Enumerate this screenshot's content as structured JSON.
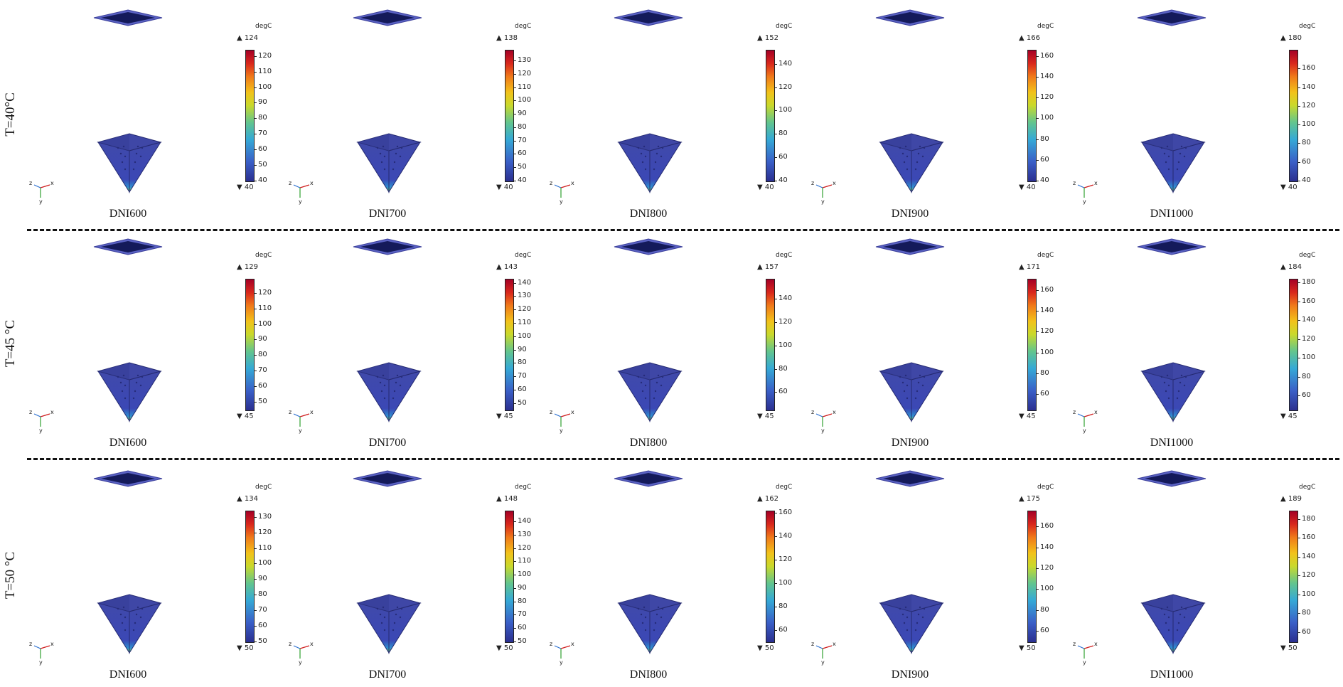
{
  "unit": "degC",
  "rows": [
    {
      "label": "T=40°C",
      "panels": [
        {
          "title": "DNI600",
          "max": "124",
          "min": "40",
          "ticks": [
            "120",
            "110",
            "100",
            "90",
            "80",
            "70",
            "60",
            "50",
            "40"
          ]
        },
        {
          "title": "DNI700",
          "max": "138",
          "min": "40",
          "ticks": [
            "130",
            "120",
            "110",
            "100",
            "90",
            "80",
            "70",
            "60",
            "50",
            "40"
          ]
        },
        {
          "title": "DNI800",
          "max": "152",
          "min": "40",
          "ticks": [
            "140",
            "120",
            "100",
            "80",
            "60",
            "40"
          ]
        },
        {
          "title": "DNI900",
          "max": "166",
          "min": "40",
          "ticks": [
            "160",
            "140",
            "120",
            "100",
            "80",
            "60",
            "40"
          ]
        },
        {
          "title": "DNI1000",
          "max": "180",
          "min": "40",
          "ticks": [
            "160",
            "140",
            "120",
            "100",
            "80",
            "60",
            "40"
          ]
        }
      ]
    },
    {
      "label": "T=45 °C",
      "panels": [
        {
          "title": "DNI600",
          "max": "129",
          "min": "45",
          "ticks": [
            "120",
            "110",
            "100",
            "90",
            "80",
            "70",
            "60",
            "50"
          ]
        },
        {
          "title": "DNI700",
          "max": "143",
          "min": "45",
          "ticks": [
            "140",
            "130",
            "120",
            "110",
            "100",
            "90",
            "80",
            "70",
            "60",
            "50"
          ]
        },
        {
          "title": "DNI800",
          "max": "157",
          "min": "45",
          "ticks": [
            "140",
            "120",
            "100",
            "80",
            "60"
          ]
        },
        {
          "title": "DNI900",
          "max": "171",
          "min": "45",
          "ticks": [
            "160",
            "140",
            "120",
            "100",
            "80",
            "60"
          ]
        },
        {
          "title": "DNI1000",
          "max": "184",
          "min": "45",
          "ticks": [
            "180",
            "160",
            "140",
            "120",
            "100",
            "80",
            "60"
          ]
        }
      ]
    },
    {
      "label": "T=50 °C",
      "panels": [
        {
          "title": "DNI600",
          "max": "134",
          "min": "50",
          "ticks": [
            "130",
            "120",
            "110",
            "100",
            "90",
            "80",
            "70",
            "60",
            "50"
          ]
        },
        {
          "title": "DNI700",
          "max": "148",
          "min": "50",
          "ticks": [
            "140",
            "130",
            "120",
            "110",
            "100",
            "90",
            "80",
            "70",
            "60",
            "50"
          ]
        },
        {
          "title": "DNI800",
          "max": "162",
          "min": "50",
          "ticks": [
            "160",
            "140",
            "120",
            "100",
            "80",
            "60"
          ]
        },
        {
          "title": "DNI900",
          "max": "175",
          "min": "50",
          "ticks": [
            "160",
            "140",
            "120",
            "100",
            "80",
            "60"
          ]
        },
        {
          "title": "DNI1000",
          "max": "189",
          "min": "50",
          "ticks": [
            "180",
            "160",
            "140",
            "120",
            "100",
            "80",
            "60"
          ]
        }
      ]
    }
  ],
  "axes_labels": {
    "z": "z",
    "x": "x",
    "y": "y"
  },
  "colors": {
    "cold": "#2b2f8f",
    "body": "#3d45a8",
    "hot": "#a50026",
    "separator": "#111111"
  }
}
